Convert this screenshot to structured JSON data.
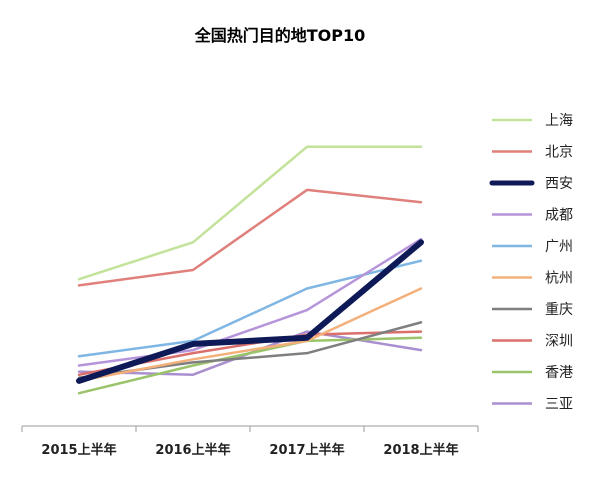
{
  "chart_data": {
    "type": "line",
    "title": "全国热门目的地TOP10",
    "xlabel": "",
    "ylabel": "",
    "categories": [
      "2015上半年",
      "2016上半年",
      "2017上半年",
      "2018上半年"
    ],
    "ylim": [
      0,
      100
    ],
    "grid": false,
    "legend": "right",
    "series": [
      {
        "name": "上海",
        "color": "#c3e29a",
        "width": 2.5,
        "values": [
          47,
          59,
          90,
          90
        ]
      },
      {
        "name": "北京",
        "color": "#e0807c",
        "width": 2.5,
        "values": [
          45,
          50,
          76,
          72
        ]
      },
      {
        "name": "西安",
        "color": "#0d1a57",
        "width": 6,
        "values": [
          14,
          26,
          28,
          59
        ]
      },
      {
        "name": "成都",
        "color": "#b694d9",
        "width": 2.5,
        "values": [
          19,
          24,
          37,
          60
        ]
      },
      {
        "name": "广州",
        "color": "#7fb6e3",
        "width": 2.5,
        "values": [
          22,
          27,
          44,
          53
        ]
      },
      {
        "name": "杭州",
        "color": "#f3b07a",
        "width": 2.5,
        "values": [
          14,
          21,
          27,
          44
        ]
      },
      {
        "name": "重庆",
        "color": "#7f7f7f",
        "width": 2.5,
        "values": [
          15,
          20,
          23,
          33
        ]
      },
      {
        "name": "深圳",
        "color": "#d9706c",
        "width": 2.5,
        "values": [
          16,
          23,
          29,
          30
        ]
      },
      {
        "name": "香港",
        "color": "#9bc46a",
        "width": 2.5,
        "values": [
          10,
          19,
          27,
          28
        ]
      },
      {
        "name": "三亚",
        "color": "#a98fd0",
        "width": 2.5,
        "values": [
          17,
          16,
          30,
          24
        ]
      }
    ]
  }
}
